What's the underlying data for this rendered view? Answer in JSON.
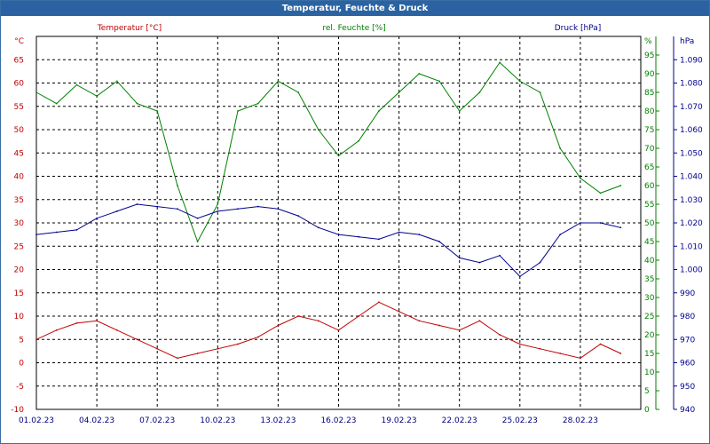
{
  "window": {
    "title": "Temperatur, Feuchte & Druck"
  },
  "chart_data": {
    "type": "line",
    "title": "Temperatur, Feuchte & Druck",
    "grid": true,
    "x_range": [
      "2023-02-01",
      "2023-03-03"
    ],
    "x_ticks": [
      "01.02.23",
      "04.02.23",
      "07.02.23",
      "10.02.23",
      "13.02.23",
      "16.02.23",
      "19.02.23",
      "22.02.23",
      "25.02.23",
      "28.02.23"
    ],
    "axes": {
      "temperature": {
        "label": "Temperatur [°C]",
        "unit": "°C",
        "range": [
          -10,
          70
        ],
        "ticks": [
          -10,
          -5,
          0,
          5,
          10,
          15,
          20,
          25,
          30,
          35,
          40,
          45,
          50,
          55,
          60,
          65
        ],
        "color": "#c00000"
      },
      "humidity": {
        "label": "rel. Feuchte [%]",
        "unit": "%",
        "range": [
          0,
          100
        ],
        "ticks": [
          0,
          5,
          10,
          15,
          20,
          25,
          30,
          35,
          40,
          45,
          50,
          55,
          60,
          65,
          70,
          75,
          80,
          85,
          90,
          95
        ],
        "color": "#008000"
      },
      "pressure": {
        "label": "Druck [hPa]",
        "unit": "hPa",
        "range": [
          940,
          1100
        ],
        "ticks": [
          "940",
          "950",
          "960",
          "970",
          "980",
          "990",
          "1.000",
          "1.010",
          "1.020",
          "1.030",
          "1.040",
          "1.050",
          "1.060",
          "1.070",
          "1.080",
          "1.090"
        ],
        "color": "#00008b"
      }
    },
    "series": [
      {
        "name": "Temperatur [°C]",
        "axis": "temperature",
        "color": "#c00000",
        "x": [
          "2023-02-01",
          "2023-02-02",
          "2023-02-03",
          "2023-02-04",
          "2023-02-05",
          "2023-02-06",
          "2023-02-07",
          "2023-02-08",
          "2023-02-09",
          "2023-02-10",
          "2023-02-11",
          "2023-02-12",
          "2023-02-13",
          "2023-02-14",
          "2023-02-15",
          "2023-02-16",
          "2023-02-17",
          "2023-02-18",
          "2023-02-19",
          "2023-02-20",
          "2023-02-21",
          "2023-02-22",
          "2023-02-23",
          "2023-02-24",
          "2023-02-25",
          "2023-02-26",
          "2023-02-27",
          "2023-02-28",
          "2023-03-01",
          "2023-03-02"
        ],
        "y": [
          5,
          7,
          8.5,
          9,
          7,
          5,
          3,
          1,
          2,
          3,
          4,
          5.5,
          8,
          10,
          9,
          7,
          10,
          13,
          11,
          9,
          8,
          7,
          9,
          6,
          4,
          3,
          2,
          1,
          4,
          2
        ]
      },
      {
        "name": "rel. Feuchte [%]",
        "axis": "humidity",
        "color": "#008000",
        "x": [
          "2023-02-01",
          "2023-02-02",
          "2023-02-03",
          "2023-02-04",
          "2023-02-05",
          "2023-02-06",
          "2023-02-07",
          "2023-02-08",
          "2023-02-09",
          "2023-02-10",
          "2023-02-11",
          "2023-02-12",
          "2023-02-13",
          "2023-02-14",
          "2023-02-15",
          "2023-02-16",
          "2023-02-17",
          "2023-02-18",
          "2023-02-19",
          "2023-02-20",
          "2023-02-21",
          "2023-02-22",
          "2023-02-23",
          "2023-02-24",
          "2023-02-25",
          "2023-02-26",
          "2023-02-27",
          "2023-02-28",
          "2023-03-01",
          "2023-03-02"
        ],
        "y": [
          85,
          82,
          87,
          84,
          88,
          82,
          80,
          60,
          45,
          55,
          80,
          82,
          88,
          85,
          75,
          68,
          72,
          80,
          85,
          90,
          88,
          80,
          85,
          93,
          88,
          85,
          70,
          62,
          58,
          60
        ]
      },
      {
        "name": "Druck [hPa]",
        "axis": "pressure",
        "color": "#00008b",
        "x": [
          "2023-02-01",
          "2023-02-02",
          "2023-02-03",
          "2023-02-04",
          "2023-02-05",
          "2023-02-06",
          "2023-02-07",
          "2023-02-08",
          "2023-02-09",
          "2023-02-10",
          "2023-02-11",
          "2023-02-12",
          "2023-02-13",
          "2023-02-14",
          "2023-02-15",
          "2023-02-16",
          "2023-02-17",
          "2023-02-18",
          "2023-02-19",
          "2023-02-20",
          "2023-02-21",
          "2023-02-22",
          "2023-02-23",
          "2023-02-24",
          "2023-02-25",
          "2023-02-26",
          "2023-02-27",
          "2023-02-28",
          "2023-03-01",
          "2023-03-02"
        ],
        "y": [
          1015,
          1016,
          1017,
          1022,
          1025,
          1028,
          1027,
          1026,
          1022,
          1025,
          1026,
          1027,
          1026,
          1023,
          1018,
          1015,
          1014,
          1013,
          1016,
          1015,
          1012,
          1005,
          1003,
          1006,
          997,
          1003,
          1015,
          1020,
          1020,
          1018
        ]
      }
    ]
  }
}
